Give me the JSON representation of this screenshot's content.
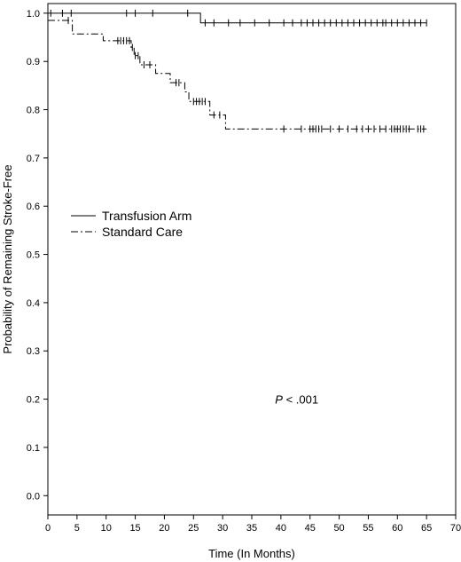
{
  "chart_data": {
    "type": "line",
    "title": "",
    "xlabel": "Time (In Months)",
    "ylabel": "Probability of Remaining Stroke-Free",
    "xlim": [
      0,
      70
    ],
    "ylim": [
      -0.04,
      1.02
    ],
    "x_ticks": [
      0,
      5,
      10,
      15,
      20,
      25,
      30,
      35,
      40,
      45,
      50,
      55,
      60,
      65,
      70
    ],
    "x_tick_labels": [
      "0",
      "5",
      "10",
      "15",
      "20",
      "25",
      "30",
      "35",
      "40",
      "45",
      "50",
      "55",
      "60",
      "65",
      "70"
    ],
    "y_ticks": [
      0.0,
      0.1,
      0.2,
      0.3,
      0.4,
      0.5,
      0.6,
      0.7,
      0.8,
      0.9,
      1.0
    ],
    "y_tick_labels": [
      "0.0",
      "0.1",
      "0.2",
      "0.3",
      "0.4",
      "0.5",
      "0.6",
      "0.7",
      "0.8",
      "0.9",
      "1.0"
    ],
    "grid": false,
    "legend_position": "left-middle",
    "annotation": {
      "italic": "P",
      "rest": " < .001"
    },
    "series": [
      {
        "name": "Transfusion Arm",
        "style": "solid",
        "color": "#000000",
        "steps": [
          [
            0,
            1.0
          ],
          [
            26.2,
            0.98
          ],
          [
            65,
            0.98
          ]
        ],
        "censor_x": [
          0.5,
          2.5,
          4.0,
          13.5,
          15.0,
          18.0,
          24.0,
          27.0,
          28.5,
          31.0,
          33.0,
          35.5,
          38.0,
          40.5,
          42.0,
          43.5,
          44.5,
          45.5,
          46.5,
          47.5,
          48.5,
          49.5,
          50.5,
          51.5,
          52.5,
          53.5,
          54.5,
          55.5,
          56.5,
          57.5,
          58.0,
          59.0,
          60.0,
          61.0,
          62.0,
          63.0,
          64.0,
          65.0
        ]
      },
      {
        "name": "Standard Care",
        "style": "dash-dot",
        "color": "#000000",
        "steps": [
          [
            0,
            0.985
          ],
          [
            4.2,
            0.957
          ],
          [
            9.5,
            0.943
          ],
          [
            14.3,
            0.929
          ],
          [
            14.8,
            0.912
          ],
          [
            15.8,
            0.893
          ],
          [
            18.5,
            0.875
          ],
          [
            21.0,
            0.856
          ],
          [
            23.5,
            0.837
          ],
          [
            24.2,
            0.817
          ],
          [
            27.8,
            0.789
          ],
          [
            30.5,
            0.76
          ],
          [
            65,
            0.76
          ]
        ],
        "censor_x": [
          3.5,
          12.0,
          12.5,
          13.0,
          13.5,
          14.0,
          14.5,
          15.0,
          15.5,
          16.5,
          17.5,
          22.0,
          22.5,
          25.0,
          25.5,
          26.0,
          26.5,
          27.0,
          28.5,
          29.5,
          40.5,
          43.5,
          45.0,
          45.5,
          46.0,
          46.5,
          47.0,
          48.5,
          50.0,
          51.5,
          53.0,
          54.0,
          55.0,
          56.0,
          57.0,
          58.0,
          59.0,
          59.5,
          60.0,
          60.5,
          61.0,
          61.5,
          62.0,
          63.5,
          64.0,
          64.5
        ]
      }
    ]
  }
}
